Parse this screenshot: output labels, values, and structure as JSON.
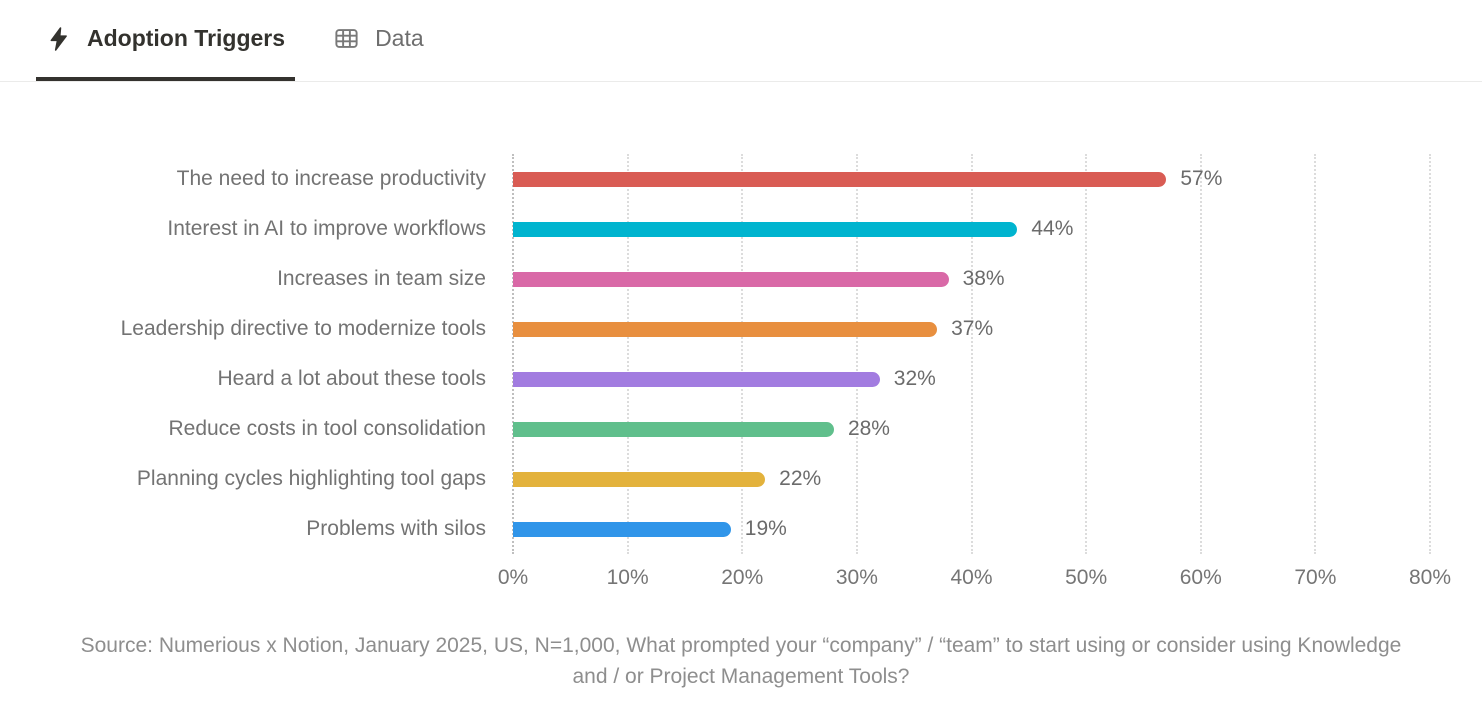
{
  "tabs": [
    {
      "label": "Adoption Triggers",
      "icon": "lightning-bolt-icon",
      "active": true
    },
    {
      "label": "Data",
      "icon": "table-icon",
      "active": false
    }
  ],
  "chart_data": {
    "type": "bar",
    "orientation": "horizontal",
    "title": "Adoption Triggers",
    "categories": [
      "The need to increase productivity",
      "Interest in AI to improve workflows",
      "Increases in team size",
      "Leadership directive to modernize tools",
      "Heard a lot about these tools",
      "Reduce costs in tool consolidation",
      "Planning cycles highlighting tool gaps",
      "Problems with silos"
    ],
    "values": [
      57,
      44,
      38,
      37,
      32,
      28,
      22,
      19
    ],
    "value_labels": [
      "57%",
      "44%",
      "38%",
      "37%",
      "32%",
      "28%",
      "22%",
      "19%"
    ],
    "bar_colors": [
      "#d95c54",
      "#00b4cf",
      "#d969a7",
      "#e88f3f",
      "#a27ce0",
      "#60bf8c",
      "#e3b23c",
      "#3095e9"
    ],
    "xlim": [
      0,
      80
    ],
    "x_ticks": [
      "0%",
      "10%",
      "20%",
      "30%",
      "40%",
      "50%",
      "60%",
      "70%",
      "80%"
    ],
    "grid": "vertical-dotted",
    "legend": "none"
  },
  "source_note": "Source: Numerious x Notion, January 2025, US, N=1,000, What prompted your “company” / “team” to start using or consider using Knowledge and / or Project Management Tools?",
  "colors": {
    "tab_active_text": "#33322e",
    "tab_inactive_text": "#6e6e6e",
    "tab_underline": "#34322e",
    "header_border": "#ebebea",
    "category_label_text": "#737373",
    "value_label_text": "#6b6b6b",
    "axis_tick_text": "#757575",
    "gridline": "#dcdcdc",
    "axis_line": "#bfbfbf",
    "source_text": "#8e8e8e",
    "background": "#ffffff"
  }
}
